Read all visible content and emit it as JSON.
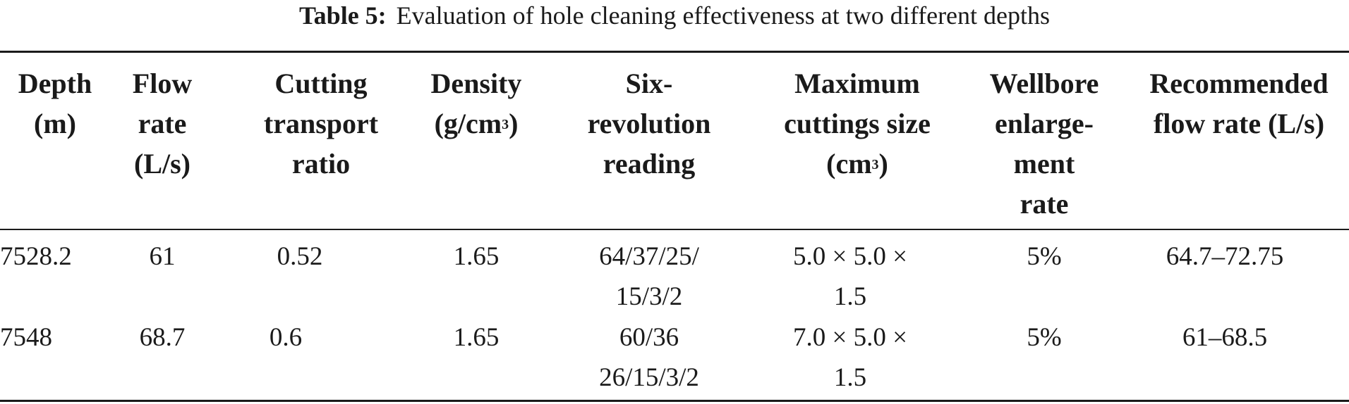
{
  "caption": {
    "label": "Table 5:",
    "text": "Evaluation of hole cleaning effectiveness at two different depths"
  },
  "headers": [
    {
      "lines": [
        "Depth",
        "(m)"
      ]
    },
    {
      "lines": [
        "Flow",
        "rate",
        "(L/s)"
      ]
    },
    {
      "lines": [
        "Cutting",
        "transport",
        "ratio"
      ]
    },
    {
      "lines": [
        "Density",
        "(g/cm",
        ")"
      ],
      "superscript": "3"
    },
    {
      "lines": [
        "Six-",
        "revolution",
        "reading"
      ]
    },
    {
      "lines": [
        "Maximum",
        "cuttings size",
        "(cm",
        ")"
      ],
      "superscript": "3"
    },
    {
      "lines": [
        "Wellbore",
        "enlarge-",
        "ment",
        "rate"
      ]
    },
    {
      "lines": [
        "Recommended",
        "flow rate (L/s)"
      ]
    }
  ],
  "rows": [
    {
      "depth": "7528.2",
      "flow_rate": "61",
      "cutting_transport_ratio": "0.52",
      "density": "1.65",
      "six_revolution_reading": [
        "64/37/25/",
        "15/3/2"
      ],
      "max_cuttings_size": [
        "5.0 × 5.0 ×",
        "1.5"
      ],
      "wellbore_enlargement_rate": "5%",
      "recommended_flow_rate": "64.7–72.75"
    },
    {
      "depth": "7548",
      "flow_rate": "68.7",
      "cutting_transport_ratio": "0.6",
      "density": "1.65",
      "six_revolution_reading": [
        "60/36",
        "26/15/3/2"
      ],
      "max_cuttings_size": [
        "7.0 × 5.0 ×",
        "1.5"
      ],
      "wellbore_enlargement_rate": "5%",
      "recommended_flow_rate": "61–68.5"
    }
  ]
}
